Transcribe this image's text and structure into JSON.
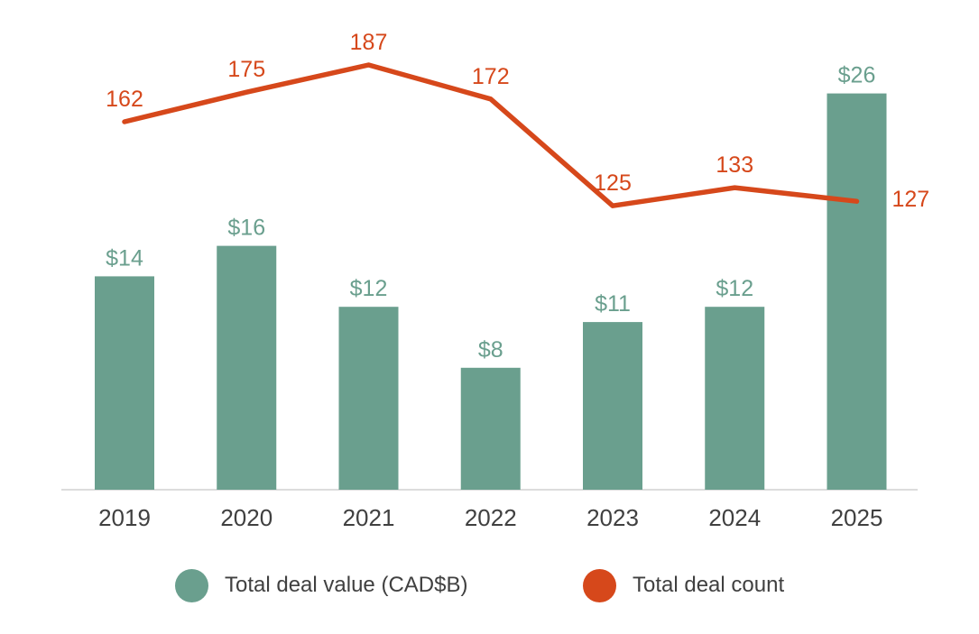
{
  "chart_data": {
    "type": "combo",
    "categories": [
      "2019",
      "2020",
      "2021",
      "2022",
      "2023",
      "2024",
      "2025"
    ],
    "series": [
      {
        "name": "Total deal value (CAD$B)",
        "type": "bar",
        "values": [
          14,
          16,
          12,
          8,
          11,
          12,
          26
        ],
        "labels": [
          "$14",
          "$16",
          "$12",
          "$8",
          "$11",
          "$12",
          "$26"
        ],
        "color": "#6a9f8e"
      },
      {
        "name": "Total deal count",
        "type": "line",
        "values": [
          162,
          175,
          187,
          172,
          125,
          133,
          127
        ],
        "labels": [
          "162",
          "175",
          "187",
          "172",
          "125",
          "133",
          "127"
        ],
        "color": "#d6481b"
      }
    ],
    "title": "",
    "xlabel": "",
    "ylabel": "",
    "grid": false,
    "legend_position": "bottom",
    "axes": {
      "bar_value_range": [
        0,
        26
      ],
      "line_value_range_shown": [
        125,
        187
      ],
      "x_axis_line": true,
      "y_axis_ticks": false
    }
  },
  "legend": {
    "items": [
      {
        "label": "Total deal value (CAD$B)",
        "color": "#6a9f8e"
      },
      {
        "label": "Total deal count",
        "color": "#d6481b"
      }
    ]
  },
  "styles": {
    "text_color": "#404040",
    "axis_line_color": "#dcdcdc",
    "bar_label_color": "#6a9f8e",
    "line_label_color": "#d6481b"
  }
}
